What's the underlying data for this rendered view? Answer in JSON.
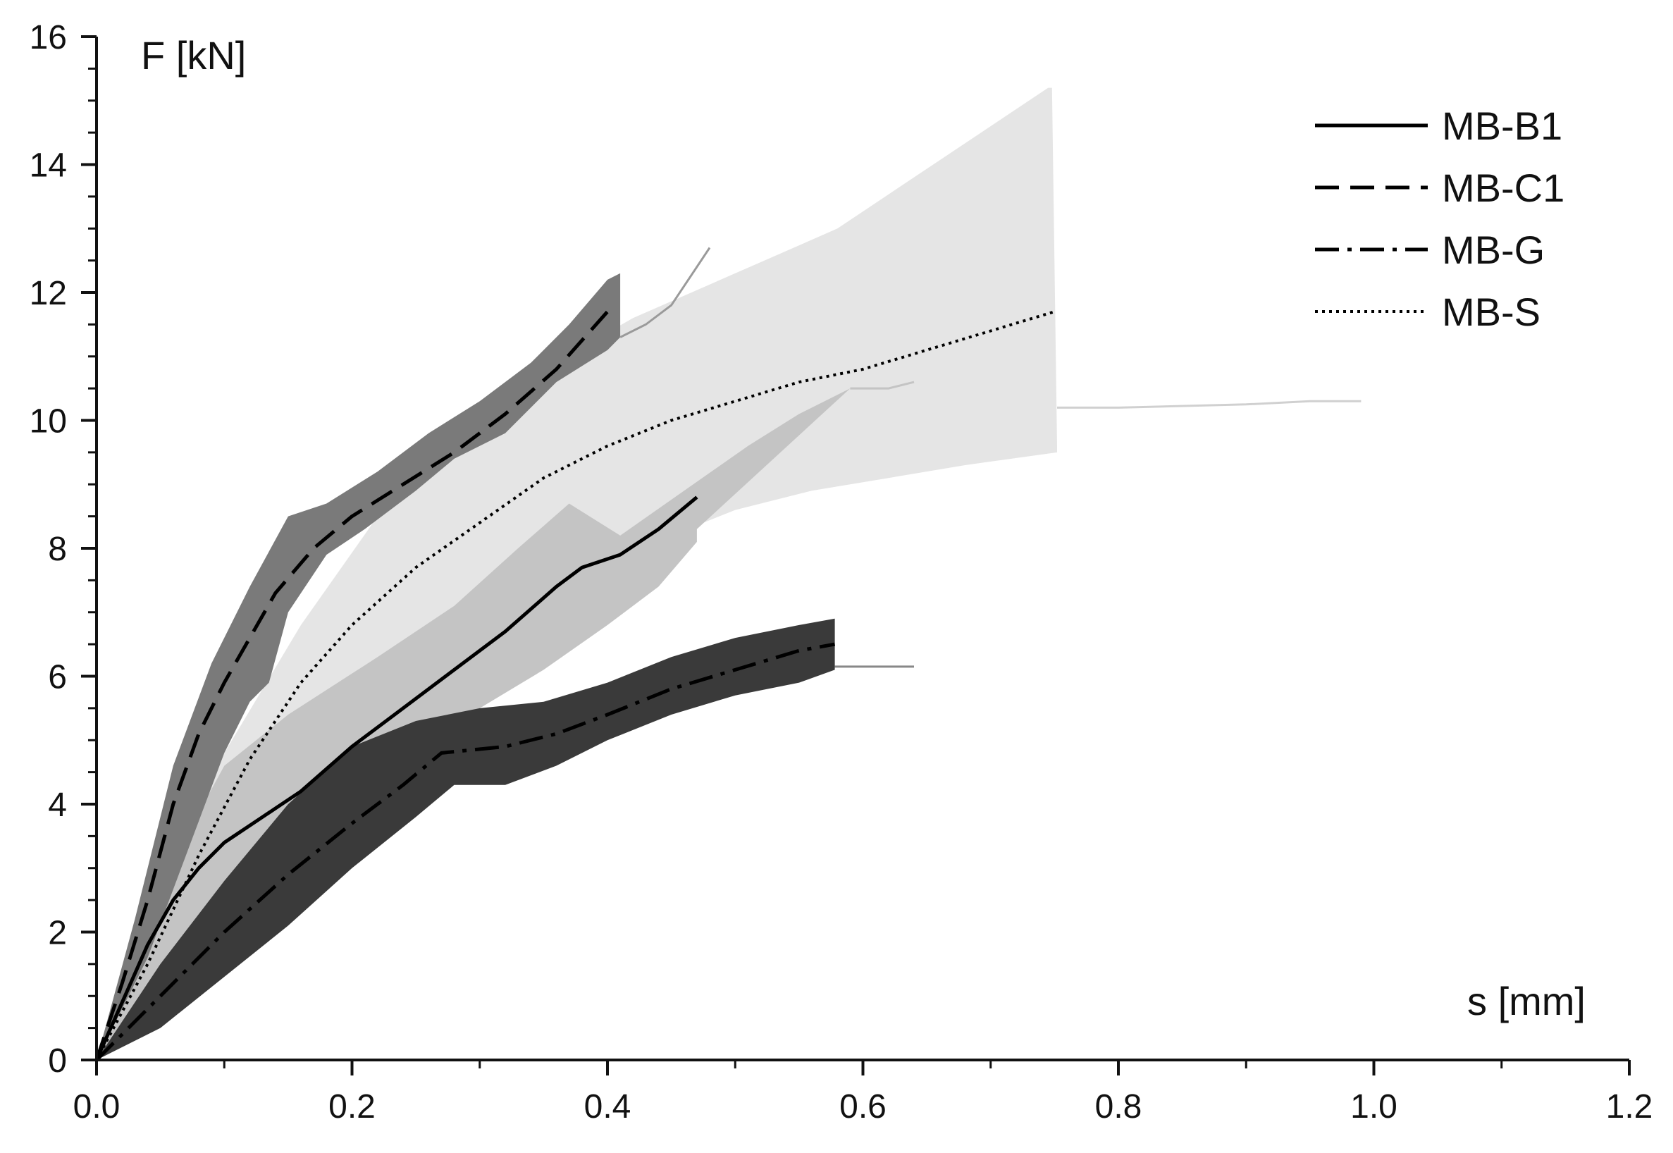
{
  "chart_data": {
    "type": "line",
    "xlabel": "s [mm]",
    "ylabel": "F [kN]",
    "xlim": [
      0,
      1.2
    ],
    "ylim": [
      0,
      16
    ],
    "xticks": [
      "0.0",
      "0.2",
      "0.4",
      "0.6",
      "0.8",
      "1.0",
      "1.2"
    ],
    "yticks": [
      "0",
      "2",
      "4",
      "6",
      "8",
      "10",
      "12",
      "14",
      "16"
    ],
    "grid": false,
    "legend_position": "top-right",
    "bands": [
      {
        "series": "MB-S",
        "color": "#e5e5e5",
        "upper": [
          [
            0.0,
            0.0
          ],
          [
            0.05,
            2.6
          ],
          [
            0.1,
            4.8
          ],
          [
            0.16,
            6.8
          ],
          [
            0.22,
            8.5
          ],
          [
            0.28,
            9.9
          ],
          [
            0.35,
            10.8
          ],
          [
            0.42,
            11.6
          ],
          [
            0.5,
            12.3
          ],
          [
            0.58,
            13.0
          ],
          [
            0.64,
            13.8
          ],
          [
            0.7,
            14.6
          ],
          [
            0.745,
            15.2
          ],
          [
            0.748,
            15.2
          ],
          [
            0.752,
            9.6
          ]
        ],
        "lower": [
          [
            0.0,
            0.0
          ],
          [
            0.05,
            1.2
          ],
          [
            0.1,
            2.6
          ],
          [
            0.16,
            4.1
          ],
          [
            0.22,
            5.3
          ],
          [
            0.28,
            6.2
          ],
          [
            0.34,
            6.9
          ],
          [
            0.4,
            7.6
          ],
          [
            0.45,
            8.2
          ],
          [
            0.5,
            8.6
          ],
          [
            0.56,
            8.9
          ],
          [
            0.62,
            9.1
          ],
          [
            0.68,
            9.3
          ],
          [
            0.752,
            9.5
          ]
        ]
      },
      {
        "series": "MB-B1",
        "color": "#c4c4c4",
        "upper": [
          [
            0.0,
            0.0
          ],
          [
            0.04,
            2.4
          ],
          [
            0.1,
            4.6
          ],
          [
            0.15,
            5.4
          ],
          [
            0.22,
            6.3
          ],
          [
            0.28,
            7.1
          ],
          [
            0.33,
            8.0
          ],
          [
            0.37,
            8.7
          ],
          [
            0.41,
            8.2
          ],
          [
            0.46,
            8.9
          ],
          [
            0.51,
            9.6
          ],
          [
            0.55,
            10.1
          ],
          [
            0.59,
            10.5
          ]
        ],
        "lower": [
          [
            0.0,
            0.0
          ],
          [
            0.05,
            1.4
          ],
          [
            0.1,
            2.6
          ],
          [
            0.16,
            3.6
          ],
          [
            0.2,
            4.3
          ],
          [
            0.25,
            5.0
          ],
          [
            0.3,
            5.5
          ],
          [
            0.35,
            6.1
          ],
          [
            0.4,
            6.8
          ],
          [
            0.44,
            7.4
          ],
          [
            0.47,
            8.1
          ],
          [
            0.47,
            8.3
          ]
        ]
      },
      {
        "series": "MB-C1",
        "color": "#7a7a7a",
        "upper": [
          [
            0.0,
            0.0
          ],
          [
            0.03,
            2.2
          ],
          [
            0.06,
            4.6
          ],
          [
            0.09,
            6.2
          ],
          [
            0.12,
            7.4
          ],
          [
            0.15,
            8.5
          ],
          [
            0.18,
            8.7
          ],
          [
            0.22,
            9.2
          ],
          [
            0.26,
            9.8
          ],
          [
            0.3,
            10.3
          ],
          [
            0.34,
            10.9
          ],
          [
            0.37,
            11.5
          ],
          [
            0.4,
            12.2
          ],
          [
            0.41,
            12.3
          ]
        ],
        "lower": [
          [
            0.0,
            0.0
          ],
          [
            0.04,
            1.6
          ],
          [
            0.07,
            3.2
          ],
          [
            0.1,
            4.8
          ],
          [
            0.12,
            5.6
          ],
          [
            0.135,
            5.9
          ],
          [
            0.15,
            7.0
          ],
          [
            0.18,
            7.9
          ],
          [
            0.21,
            8.3
          ],
          [
            0.25,
            8.9
          ],
          [
            0.28,
            9.4
          ],
          [
            0.32,
            9.8
          ],
          [
            0.36,
            10.6
          ],
          [
            0.4,
            11.1
          ],
          [
            0.41,
            11.3
          ]
        ]
      },
      {
        "series": "MB-G",
        "color": "#3a3a3a",
        "upper": [
          [
            0.0,
            0.0
          ],
          [
            0.05,
            1.5
          ],
          [
            0.1,
            2.8
          ],
          [
            0.15,
            4.0
          ],
          [
            0.2,
            4.9
          ],
          [
            0.25,
            5.3
          ],
          [
            0.3,
            5.5
          ],
          [
            0.35,
            5.6
          ],
          [
            0.4,
            5.9
          ],
          [
            0.45,
            6.3
          ],
          [
            0.5,
            6.6
          ],
          [
            0.55,
            6.8
          ],
          [
            0.578,
            6.9
          ]
        ],
        "lower": [
          [
            0.0,
            0.0
          ],
          [
            0.05,
            0.5
          ],
          [
            0.1,
            1.3
          ],
          [
            0.15,
            2.1
          ],
          [
            0.2,
            3.0
          ],
          [
            0.25,
            3.8
          ],
          [
            0.28,
            4.3
          ],
          [
            0.32,
            4.3
          ],
          [
            0.36,
            4.6
          ],
          [
            0.4,
            5.0
          ],
          [
            0.45,
            5.4
          ],
          [
            0.5,
            5.7
          ],
          [
            0.55,
            5.9
          ],
          [
            0.578,
            6.1
          ]
        ]
      }
    ],
    "extra_traces": [
      {
        "color": "#9a9a9a",
        "points": [
          [
            0.41,
            11.3
          ],
          [
            0.43,
            11.5
          ],
          [
            0.45,
            11.8
          ],
          [
            0.47,
            12.4
          ],
          [
            0.48,
            12.7
          ]
        ]
      },
      {
        "color": "#c4c4c4",
        "points": [
          [
            0.59,
            10.5
          ],
          [
            0.62,
            10.5
          ],
          [
            0.64,
            10.6
          ]
        ]
      },
      {
        "color": "#d0d0d0",
        "points": [
          [
            0.752,
            10.2
          ],
          [
            0.8,
            10.2
          ],
          [
            0.9,
            10.25
          ],
          [
            0.95,
            10.3
          ],
          [
            0.99,
            10.3
          ]
        ]
      },
      {
        "color": "#888888",
        "points": [
          [
            0.578,
            6.15
          ],
          [
            0.62,
            6.15
          ],
          [
            0.64,
            6.15
          ]
        ]
      }
    ],
    "series": [
      {
        "name": "MB-B1",
        "style": "solid",
        "color": "#000000",
        "points": [
          [
            0.0,
            0.0
          ],
          [
            0.02,
            0.9
          ],
          [
            0.04,
            1.8
          ],
          [
            0.06,
            2.5
          ],
          [
            0.08,
            3.0
          ],
          [
            0.1,
            3.4
          ],
          [
            0.13,
            3.8
          ],
          [
            0.16,
            4.2
          ],
          [
            0.2,
            4.9
          ],
          [
            0.24,
            5.5
          ],
          [
            0.28,
            6.1
          ],
          [
            0.32,
            6.7
          ],
          [
            0.36,
            7.4
          ],
          [
            0.38,
            7.7
          ],
          [
            0.41,
            7.9
          ],
          [
            0.44,
            8.3
          ],
          [
            0.47,
            8.8
          ]
        ]
      },
      {
        "name": "MB-C1",
        "style": "dashed",
        "color": "#000000",
        "points": [
          [
            0.0,
            0.0
          ],
          [
            0.02,
            1.2
          ],
          [
            0.04,
            2.5
          ],
          [
            0.06,
            4.0
          ],
          [
            0.08,
            5.1
          ],
          [
            0.1,
            5.9
          ],
          [
            0.12,
            6.6
          ],
          [
            0.14,
            7.3
          ],
          [
            0.17,
            8.0
          ],
          [
            0.2,
            8.5
          ],
          [
            0.24,
            9.0
          ],
          [
            0.28,
            9.5
          ],
          [
            0.32,
            10.1
          ],
          [
            0.36,
            10.8
          ],
          [
            0.4,
            11.7
          ]
        ]
      },
      {
        "name": "MB-G",
        "style": "dashdot",
        "color": "#000000",
        "points": [
          [
            0.0,
            0.0
          ],
          [
            0.05,
            1.0
          ],
          [
            0.1,
            2.0
          ],
          [
            0.15,
            2.9
          ],
          [
            0.2,
            3.7
          ],
          [
            0.24,
            4.3
          ],
          [
            0.27,
            4.8
          ],
          [
            0.32,
            4.9
          ],
          [
            0.36,
            5.1
          ],
          [
            0.4,
            5.4
          ],
          [
            0.45,
            5.8
          ],
          [
            0.5,
            6.1
          ],
          [
            0.55,
            6.4
          ],
          [
            0.578,
            6.5
          ]
        ]
      },
      {
        "name": "MB-S",
        "style": "dotted",
        "color": "#000000",
        "points": [
          [
            0.0,
            0.0
          ],
          [
            0.04,
            1.5
          ],
          [
            0.08,
            3.2
          ],
          [
            0.12,
            4.7
          ],
          [
            0.16,
            5.9
          ],
          [
            0.2,
            6.8
          ],
          [
            0.25,
            7.7
          ],
          [
            0.3,
            8.4
          ],
          [
            0.35,
            9.1
          ],
          [
            0.4,
            9.6
          ],
          [
            0.45,
            10.0
          ],
          [
            0.5,
            10.3
          ],
          [
            0.55,
            10.6
          ],
          [
            0.6,
            10.8
          ],
          [
            0.65,
            11.1
          ],
          [
            0.7,
            11.4
          ],
          [
            0.75,
            11.7
          ]
        ]
      }
    ]
  }
}
